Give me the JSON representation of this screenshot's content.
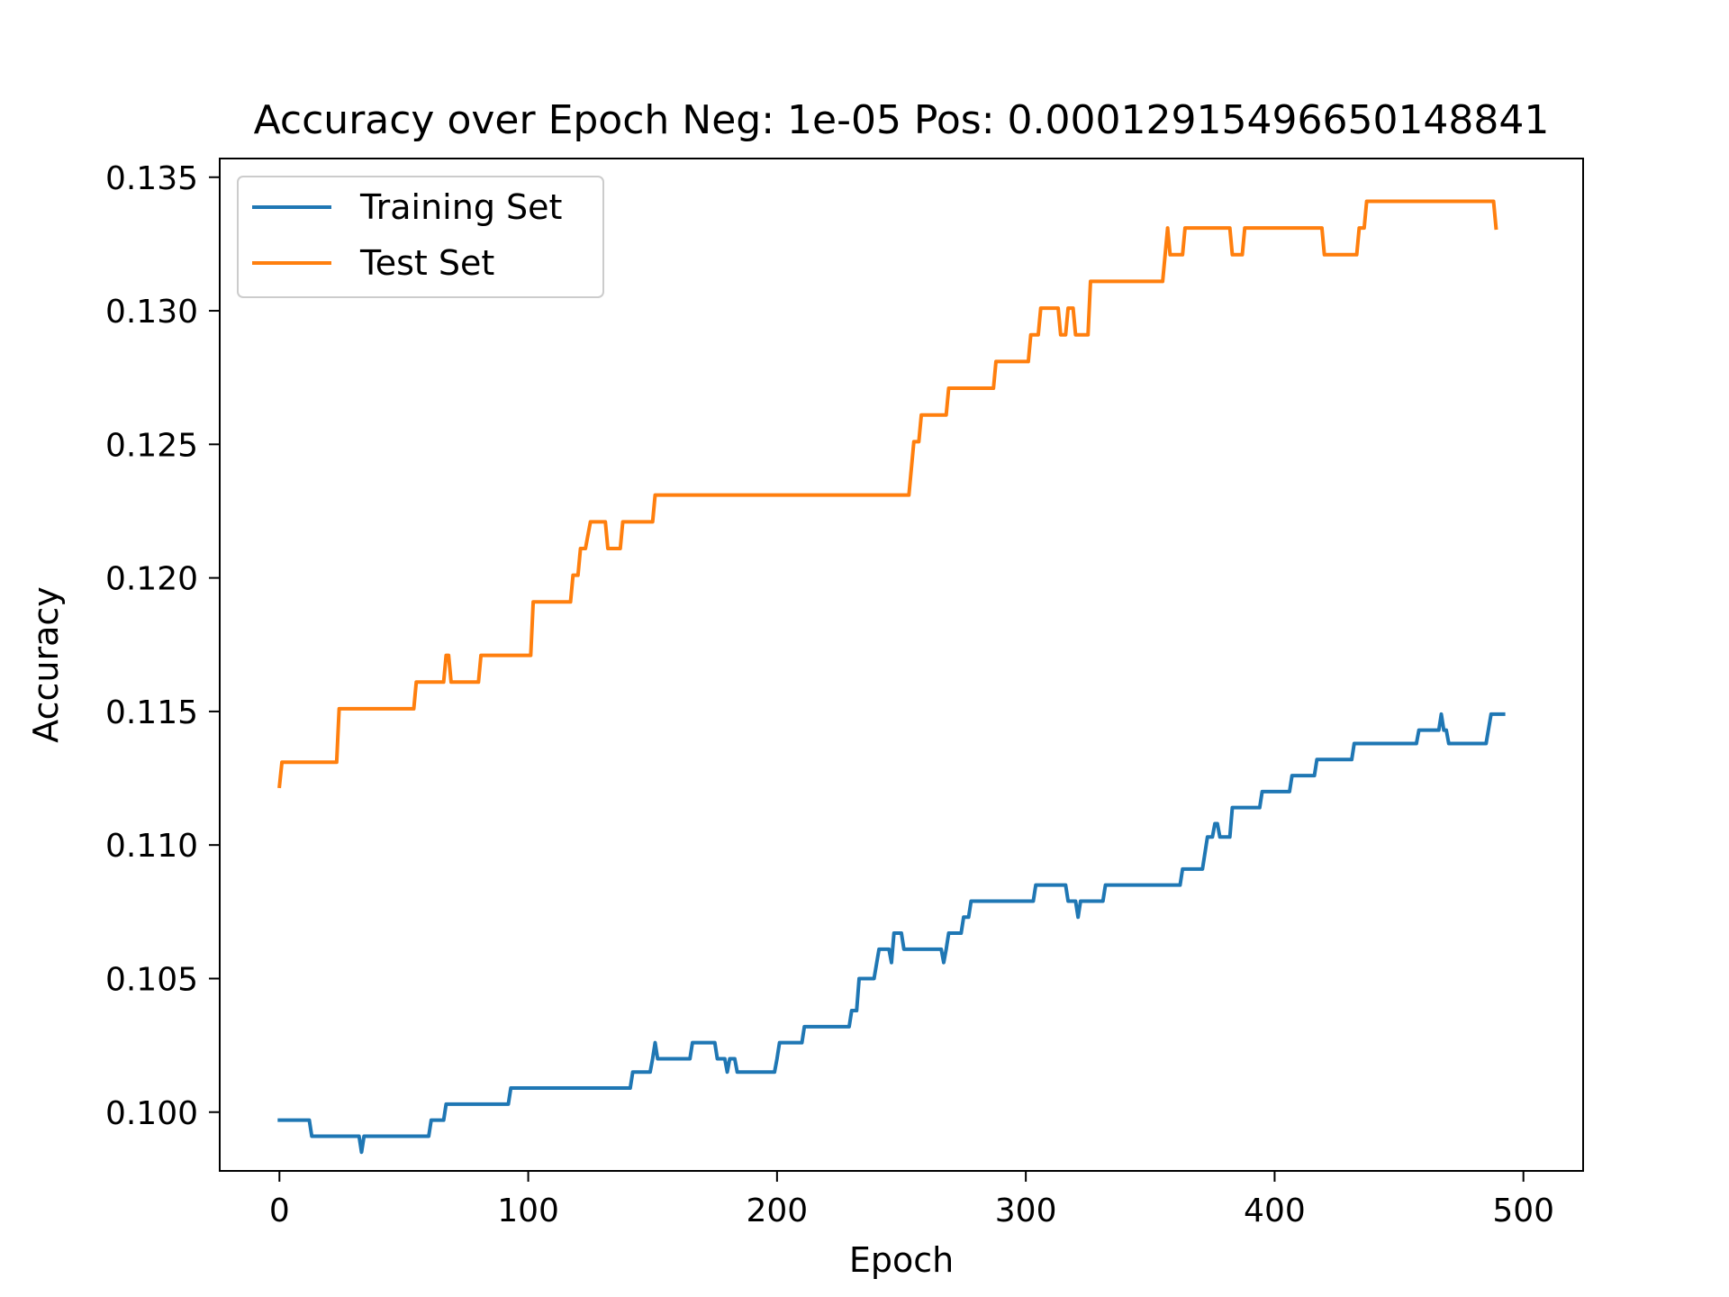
{
  "chart_data": {
    "type": "line",
    "title": "Accuracy over Epoch Neg: 1e-05 Pos: 0.00012915496650148841",
    "xlabel": "Epoch",
    "ylabel": "Accuracy",
    "xlim": [
      -24,
      524
    ],
    "ylim": [
      0.0978,
      0.1357
    ],
    "xticks": [
      0,
      100,
      200,
      300,
      400,
      500
    ],
    "xtick_labels": [
      "0",
      "100",
      "200",
      "300",
      "400",
      "500"
    ],
    "yticks": [
      0.1,
      0.105,
      0.11,
      0.115,
      0.12,
      0.125,
      0.13,
      0.135
    ],
    "ytick_labels": [
      "0.100",
      "0.105",
      "0.110",
      "0.115",
      "0.120",
      "0.125",
      "0.130",
      "0.135"
    ],
    "grid": false,
    "legend_position": "upper-left",
    "series": [
      {
        "name": "Training Set",
        "color": "#1f77b4",
        "points": [
          [
            0,
            0.0997
          ],
          [
            12,
            0.0997
          ],
          [
            13,
            0.0991
          ],
          [
            32,
            0.0991
          ],
          [
            33,
            0.0985
          ],
          [
            34,
            0.0991
          ],
          [
            60,
            0.0991
          ],
          [
            61,
            0.0997
          ],
          [
            66,
            0.0997
          ],
          [
            67,
            0.1003
          ],
          [
            92,
            0.1003
          ],
          [
            93,
            0.1009
          ],
          [
            141,
            0.1009
          ],
          [
            142,
            0.1015
          ],
          [
            149,
            0.1015
          ],
          [
            150,
            0.102
          ],
          [
            151,
            0.1026
          ],
          [
            152,
            0.102
          ],
          [
            165,
            0.102
          ],
          [
            166,
            0.1026
          ],
          [
            175,
            0.1026
          ],
          [
            176,
            0.102
          ],
          [
            179,
            0.102
          ],
          [
            180,
            0.1015
          ],
          [
            181,
            0.102
          ],
          [
            183,
            0.102
          ],
          [
            184,
            0.1015
          ],
          [
            199,
            0.1015
          ],
          [
            200,
            0.102
          ],
          [
            201,
            0.1026
          ],
          [
            210,
            0.1026
          ],
          [
            211,
            0.1032
          ],
          [
            229,
            0.1032
          ],
          [
            230,
            0.1038
          ],
          [
            232,
            0.1038
          ],
          [
            233,
            0.105
          ],
          [
            239,
            0.105
          ],
          [
            241,
            0.1061
          ],
          [
            245,
            0.1061
          ],
          [
            246,
            0.1056
          ],
          [
            247,
            0.1067
          ],
          [
            250,
            0.1067
          ],
          [
            251,
            0.1061
          ],
          [
            266,
            0.1061
          ],
          [
            267,
            0.1056
          ],
          [
            268,
            0.1061
          ],
          [
            269,
            0.1067
          ],
          [
            274,
            0.1067
          ],
          [
            275,
            0.1073
          ],
          [
            277,
            0.1073
          ],
          [
            278,
            0.1079
          ],
          [
            303,
            0.1079
          ],
          [
            304,
            0.1085
          ],
          [
            316,
            0.1085
          ],
          [
            317,
            0.1079
          ],
          [
            320,
            0.1079
          ],
          [
            321,
            0.1073
          ],
          [
            322,
            0.1079
          ],
          [
            331,
            0.1079
          ],
          [
            332,
            0.1085
          ],
          [
            362,
            0.1085
          ],
          [
            363,
            0.1091
          ],
          [
            371,
            0.1091
          ],
          [
            373,
            0.1103
          ],
          [
            375,
            0.1103
          ],
          [
            376,
            0.1108
          ],
          [
            377,
            0.1108
          ],
          [
            378,
            0.1103
          ],
          [
            382,
            0.1103
          ],
          [
            383,
            0.1114
          ],
          [
            394,
            0.1114
          ],
          [
            395,
            0.112
          ],
          [
            406,
            0.112
          ],
          [
            407,
            0.1126
          ],
          [
            416,
            0.1126
          ],
          [
            417,
            0.1132
          ],
          [
            431,
            0.1132
          ],
          [
            432,
            0.1138
          ],
          [
            457,
            0.1138
          ],
          [
            458,
            0.1143
          ],
          [
            466,
            0.1143
          ],
          [
            467,
            0.1149
          ],
          [
            468,
            0.1143
          ],
          [
            469,
            0.1143
          ],
          [
            470,
            0.1138
          ],
          [
            485,
            0.1138
          ],
          [
            487,
            0.1149
          ],
          [
            492,
            0.1149
          ]
        ]
      },
      {
        "name": "Test Set",
        "color": "#ff7f0e",
        "points": [
          [
            0,
            0.1122
          ],
          [
            1,
            0.1131
          ],
          [
            23,
            0.1131
          ],
          [
            24,
            0.1151
          ],
          [
            54,
            0.1151
          ],
          [
            55,
            0.1161
          ],
          [
            66,
            0.1161
          ],
          [
            67,
            0.1171
          ],
          [
            68,
            0.1171
          ],
          [
            69,
            0.1161
          ],
          [
            80,
            0.1161
          ],
          [
            81,
            0.1171
          ],
          [
            101,
            0.1171
          ],
          [
            102,
            0.1191
          ],
          [
            117,
            0.1191
          ],
          [
            118,
            0.1201
          ],
          [
            120,
            0.1201
          ],
          [
            121,
            0.1211
          ],
          [
            123,
            0.1211
          ],
          [
            125,
            0.1221
          ],
          [
            131,
            0.1221
          ],
          [
            132,
            0.1211
          ],
          [
            137,
            0.1211
          ],
          [
            138,
            0.1221
          ],
          [
            150,
            0.1221
          ],
          [
            151,
            0.1231
          ],
          [
            253,
            0.1231
          ],
          [
            255,
            0.1251
          ],
          [
            257,
            0.1251
          ],
          [
            258,
            0.1261
          ],
          [
            268,
            0.1261
          ],
          [
            269,
            0.1271
          ],
          [
            287,
            0.1271
          ],
          [
            288,
            0.1281
          ],
          [
            301,
            0.1281
          ],
          [
            302,
            0.1291
          ],
          [
            305,
            0.1291
          ],
          [
            306,
            0.1301
          ],
          [
            313,
            0.1301
          ],
          [
            314,
            0.1291
          ],
          [
            316,
            0.1291
          ],
          [
            317,
            0.1301
          ],
          [
            319,
            0.1301
          ],
          [
            320,
            0.1291
          ],
          [
            325,
            0.1291
          ],
          [
            326,
            0.1311
          ],
          [
            355,
            0.1311
          ],
          [
            356,
            0.1321
          ],
          [
            357,
            0.1331
          ],
          [
            358,
            0.1321
          ],
          [
            363,
            0.1321
          ],
          [
            364,
            0.1331
          ],
          [
            382,
            0.1331
          ],
          [
            383,
            0.1321
          ],
          [
            387,
            0.1321
          ],
          [
            388,
            0.1331
          ],
          [
            419,
            0.1331
          ],
          [
            420,
            0.1321
          ],
          [
            433,
            0.1321
          ],
          [
            434,
            0.1331
          ],
          [
            436,
            0.1331
          ],
          [
            437,
            0.1341
          ],
          [
            488,
            0.1341
          ],
          [
            489,
            0.1331
          ]
        ]
      }
    ]
  }
}
